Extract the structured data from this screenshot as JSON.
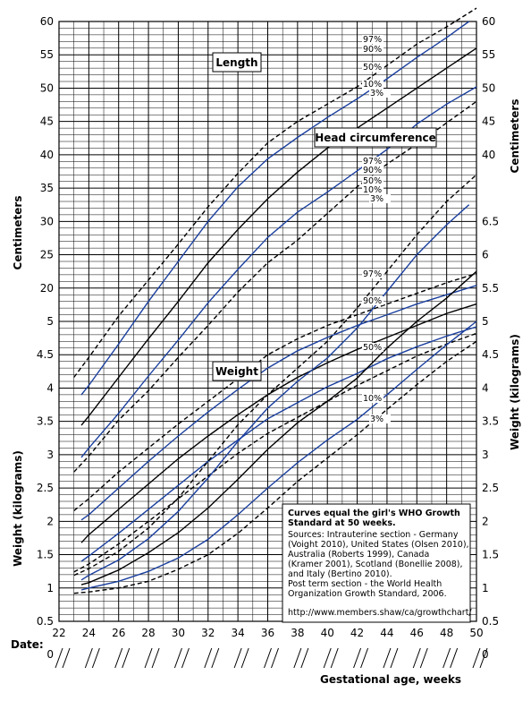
{
  "chart_data": {
    "type": "line",
    "xlabel": "Gestational age, weeks",
    "date_label": "Date:",
    "x_ticks": [
      22,
      24,
      26,
      28,
      30,
      32,
      34,
      36,
      38,
      40,
      42,
      44,
      46,
      48,
      50
    ],
    "left_axis_label_top": "Centimeters",
    "left_axis_label_bottom": "Weight (kilograms)",
    "right_axis_label_top": "Centimeters",
    "right_axis_label_bottom": "Weight (kilograms)",
    "left_ticks": [
      "60",
      "55",
      "50",
      "45",
      "40",
      "35",
      "30",
      "25",
      "20",
      "5",
      "4.5",
      "4",
      "3.5",
      "3",
      "2.5",
      "2",
      "1.5",
      "1",
      "0.5",
      "0"
    ],
    "right_ticks": [
      "60",
      "55",
      "50",
      "45",
      "40",
      "6.5",
      "6",
      "5.5",
      "5",
      "4.5",
      "4",
      "3.5",
      "3",
      "2.5",
      "2",
      "1.5",
      "1",
      "0.5",
      "0"
    ],
    "sections": {
      "length": {
        "title": "Length",
        "percentile_labels": [
          "97%",
          "90%",
          "50%",
          "10%",
          "3%"
        ],
        "series": [
          {
            "name": "97%",
            "style": "dashed",
            "color": "#000000",
            "x": [
              23,
              24,
              26,
              28,
              30,
              32,
              34,
              36,
              38,
              40,
              42,
              44,
              46,
              48,
              50
            ],
            "y": [
              33.3,
              34.8,
              37.9,
              40.6,
              43.3,
              46.1,
              48.6,
              50.9,
              52.5,
              53.8,
              55.1,
              56.7,
              58.3,
              59.6,
              61.0
            ]
          },
          {
            "name": "90%",
            "style": "solid",
            "color": "#1a3f9e",
            "x": [
              23.5,
              24,
              26,
              28,
              30,
              32,
              34,
              36,
              38,
              40,
              42,
              44,
              46,
              48,
              49.5
            ],
            "y": [
              32.0,
              32.7,
              35.8,
              39.0,
              42.0,
              45.0,
              47.6,
              49.7,
              51.3,
              52.8,
              54.2,
              55.7,
              57.3,
              58.8,
              60.0
            ]
          },
          {
            "name": "50%",
            "style": "solid",
            "color": "#000000",
            "x": [
              23.5,
              24,
              26,
              28,
              30,
              32,
              34,
              36,
              38,
              40,
              42,
              44,
              46,
              48,
              50
            ],
            "y": [
              29.7,
              30.4,
              33.3,
              36.2,
              39.0,
              41.9,
              44.4,
              46.7,
              48.7,
              50.5,
              52.0,
              53.5,
              55.0,
              56.5,
              58.0
            ]
          },
          {
            "name": "10%",
            "style": "solid",
            "color": "#1a3f9e",
            "x": [
              23.5,
              24,
              26,
              28,
              30,
              32,
              34,
              36,
              38,
              40,
              42,
              44,
              46,
              48,
              50
            ],
            "y": [
              27.3,
              28.0,
              30.6,
              33.4,
              36.1,
              38.9,
              41.4,
              43.8,
              45.7,
              47.2,
              48.8,
              50.4,
              52.3,
              53.8,
              55.1
            ]
          },
          {
            "name": "3%",
            "style": "dashed",
            "color": "#000000",
            "x": [
              23,
              24,
              26,
              28,
              30,
              32,
              34,
              36,
              38,
              40,
              42,
              44,
              46,
              48,
              50
            ],
            "y": [
              26.2,
              27.4,
              30.1,
              32.3,
              34.8,
              37.2,
              39.7,
              41.9,
              43.6,
              45.6,
              47.6,
              49.3,
              50.8,
              52.4,
              54.0
            ]
          }
        ]
      },
      "head_circumference": {
        "title": "Head circumference",
        "percentile_labels": [
          "97%",
          "90%",
          "50%",
          "10%",
          "3%"
        ],
        "series": [
          {
            "name": "97%",
            "style": "dashed",
            "color": "#000000",
            "x": [
              23,
              24,
              26,
              28,
              30,
              32,
              34,
              36,
              38,
              40,
              42,
              44,
              46,
              48,
              50
            ],
            "y": [
              23.3,
              24.2,
              26.2,
              28.0,
              29.8,
              31.5,
              33.2,
              35.0,
              36.2,
              37.2,
              38.0,
              38.8,
              39.6,
              40.4,
              41.1
            ]
          },
          {
            "name": "90%",
            "style": "solid",
            "color": "#1a3f9e",
            "x": [
              23.5,
              24,
              26,
              28,
              30,
              32,
              34,
              36,
              38,
              40,
              42,
              44,
              46,
              48,
              50
            ],
            "y": [
              22.6,
              23.0,
              25.0,
              27.0,
              28.9,
              30.7,
              32.4,
              34.0,
              35.3,
              36.3,
              37.2,
              38.0,
              38.8,
              39.5,
              40.2
            ]
          },
          {
            "name": "50%",
            "style": "solid",
            "color": "#000000",
            "x": [
              23.5,
              24,
              26,
              28,
              30,
              32,
              34,
              36,
              38,
              40,
              42,
              44,
              46,
              48,
              50
            ],
            "y": [
              20.9,
              21.5,
              23.4,
              25.3,
              27.2,
              28.9,
              30.5,
              32.0,
              33.3,
              34.4,
              35.4,
              36.3,
              37.2,
              38.1,
              38.8
            ]
          },
          {
            "name": "10%",
            "style": "solid",
            "color": "#1a3f9e",
            "x": [
              23.5,
              24,
              26,
              28,
              30,
              32,
              34,
              36,
              38,
              40,
              42,
              44,
              46,
              48,
              50
            ],
            "y": [
              19.5,
              19.9,
              21.6,
              23.4,
              25.2,
              27.0,
              28.6,
              30.2,
              31.4,
              32.6,
              33.6,
              34.7,
              35.6,
              36.4,
              37.1
            ]
          },
          {
            "name": "3%",
            "style": "dashed",
            "color": "#000000",
            "x": [
              23,
              24,
              26,
              28,
              30,
              32,
              34,
              36,
              38,
              40,
              42,
              44,
              46,
              48,
              50
            ],
            "y": [
              18.7,
              19.3,
              20.8,
              22.5,
              24.2,
              25.9,
              27.6,
              29.1,
              30.3,
              31.5,
              32.7,
              33.8,
              34.9,
              35.8,
              36.6
            ]
          }
        ]
      },
      "weight": {
        "title": "Weight",
        "percentile_labels": [
          "97%",
          "90%",
          "50%",
          "10%",
          "3%"
        ],
        "series": [
          {
            "name": "97%",
            "style": "dashed",
            "color": "#000000",
            "x": [
              23,
              24,
              26,
              28,
              30,
              32,
              34,
              36,
              38,
              40,
              42,
              44,
              46,
              48,
              50
            ],
            "y": [
              0.69,
              0.79,
              1.05,
              1.4,
              1.85,
              2.4,
              2.95,
              3.4,
              3.8,
              4.2,
              4.7,
              5.25,
              5.8,
              6.3,
              6.7
            ]
          },
          {
            "name": "90%",
            "style": "solid",
            "color": "#1a3f9e",
            "x": [
              23.5,
              24,
              26,
              28,
              30,
              32,
              34,
              36,
              38,
              40,
              42,
              44,
              46,
              48,
              49.5
            ],
            "y": [
              0.62,
              0.69,
              0.92,
              1.24,
              1.65,
              2.15,
              2.7,
              3.2,
              3.6,
              3.95,
              4.4,
              4.95,
              5.5,
              5.95,
              6.25
            ]
          },
          {
            "name": "50%",
            "style": "solid",
            "color": "#000000",
            "x": [
              23.5,
              24,
              26,
              28,
              30,
              32,
              34,
              36,
              38,
              40,
              42,
              44,
              46,
              48,
              50
            ],
            "y": [
              0.55,
              0.58,
              0.77,
              1.03,
              1.33,
              1.7,
              2.13,
              2.58,
              2.98,
              3.3,
              3.65,
              4.1,
              4.5,
              4.85,
              5.25
            ]
          },
          {
            "name": "10%",
            "style": "solid",
            "color": "#1a3f9e",
            "x": [
              23.5,
              24,
              26,
              28,
              30,
              32,
              34,
              36,
              38,
              40,
              42,
              44,
              46,
              48,
              50
            ],
            "y": [
              0.47,
              0.5,
              0.6,
              0.75,
              0.95,
              1.23,
              1.6,
              2.0,
              2.38,
              2.72,
              3.03,
              3.4,
              3.78,
              4.15,
              4.5
            ]
          },
          {
            "name": "3%",
            "style": "dashed",
            "color": "#000000",
            "x": [
              23,
              24,
              26,
              28,
              30,
              32,
              34,
              36,
              38,
              40,
              42,
              44,
              46,
              48,
              50
            ],
            "y": [
              0.42,
              0.44,
              0.5,
              0.6,
              0.78,
              1.0,
              1.32,
              1.7,
              2.1,
              2.45,
              2.8,
              3.18,
              3.55,
              3.9,
              4.2
            ]
          }
        ]
      }
    }
  },
  "note": {
    "title_lines": [
      "Curves equal the girl's WHO Growth",
      "Standard at 50 weeks."
    ],
    "body_lines": [
      "Sources: Intrauterine section - Germany",
      "(Voight 2010), United States (Olsen 2010),",
      "Australia (Roberts 1999), Canada",
      "(Kramer 2001), Scotland (Bonellie 2008),",
      "and Italy (Bertino 2010).",
      "Post term section - the World Health",
      "Organization Growth Standard, 2006."
    ],
    "url": "http://www.members.shaw/ca/growthchart/"
  },
  "colors": {
    "grid": "#000000",
    "blue": "#1a3f9e",
    "black": "#000000"
  }
}
